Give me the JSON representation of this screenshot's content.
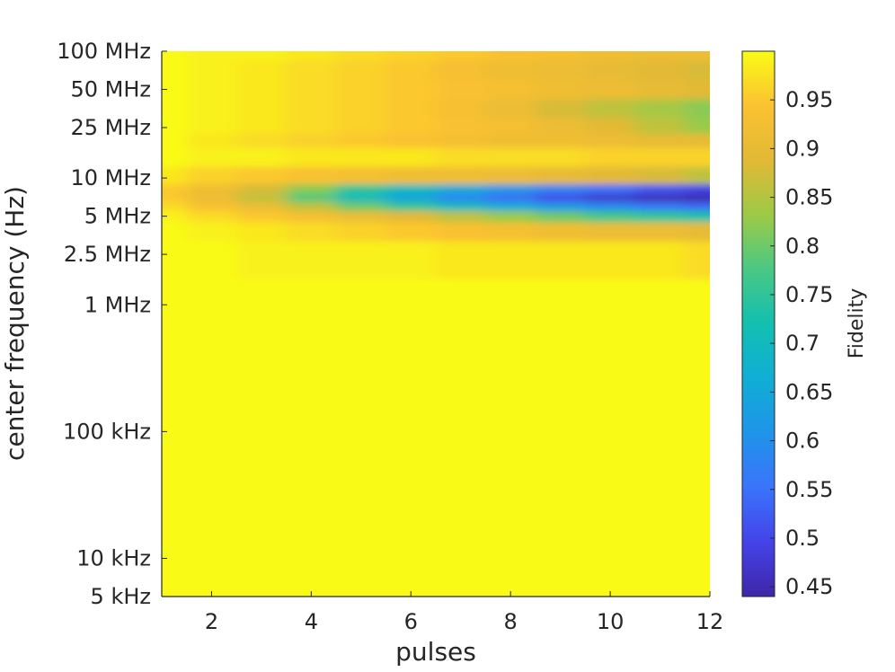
{
  "chart_data": {
    "type": "heatmap",
    "title": "",
    "xlabel": "pulses",
    "ylabel": "center frequency (Hz)",
    "colorbar_label": "Fidelity",
    "x_range": [
      1,
      12
    ],
    "x_ticks": [
      2,
      4,
      6,
      8,
      10,
      12
    ],
    "x_tick_labels": [
      "2",
      "4",
      "6",
      "8",
      "10",
      "12"
    ],
    "y_scale": "log",
    "y_range": [
      5000,
      100000000
    ],
    "y_ticks": [
      5000,
      10000,
      100000,
      1000000,
      2500000,
      5000000,
      10000000,
      25000000,
      50000000,
      100000000
    ],
    "y_tick_labels": [
      "5 kHz",
      "10 kHz",
      "100 kHz",
      "1 MHz",
      "2.5 MHz",
      "5 MHz",
      "10 MHz",
      "25 MHz",
      "50 MHz",
      "100 MHz"
    ],
    "colorbar_range": [
      0.44,
      1.0
    ],
    "colorbar_ticks": [
      0.45,
      0.5,
      0.55,
      0.6,
      0.65,
      0.7,
      0.75,
      0.8,
      0.85,
      0.9,
      0.95
    ],
    "colorbar_tick_labels": [
      "0.45",
      "0.5",
      "0.55",
      "0.6",
      "0.65",
      "0.7",
      "0.75",
      "0.8",
      "0.85",
      "0.9",
      "0.95"
    ],
    "colormap": "parula",
    "grid": false,
    "pulses": [
      1,
      2,
      3,
      4,
      5,
      6,
      7,
      8,
      9,
      10,
      11,
      12
    ],
    "frequencies_hz": [
      100000000,
      70000000,
      50000000,
      35000000,
      25000000,
      20000000,
      15000000,
      10000000,
      8000000,
      7000000,
      6000000,
      5000000,
      4000000,
      2500000,
      1000000,
      100000,
      10000,
      5000
    ],
    "fidelity": [
      [
        1.0,
        0.99,
        0.99,
        0.98,
        0.97,
        0.96,
        0.95,
        0.94,
        0.93,
        0.92,
        0.91,
        0.91
      ],
      [
        1.0,
        0.99,
        0.98,
        0.97,
        0.96,
        0.95,
        0.93,
        0.92,
        0.91,
        0.9,
        0.89,
        0.88
      ],
      [
        1.0,
        0.99,
        0.98,
        0.97,
        0.96,
        0.95,
        0.94,
        0.93,
        0.92,
        0.91,
        0.9,
        0.89
      ],
      [
        1.0,
        0.99,
        0.98,
        0.97,
        0.96,
        0.95,
        0.93,
        0.91,
        0.88,
        0.86,
        0.84,
        0.82
      ],
      [
        1.0,
        0.99,
        0.98,
        0.97,
        0.96,
        0.95,
        0.94,
        0.93,
        0.91,
        0.89,
        0.86,
        0.83
      ],
      [
        1.0,
        0.98,
        0.97,
        0.96,
        0.95,
        0.94,
        0.93,
        0.92,
        0.92,
        0.91,
        0.9,
        0.9
      ],
      [
        1.0,
        0.99,
        0.99,
        0.98,
        0.98,
        0.98,
        0.97,
        0.97,
        0.97,
        0.96,
        0.96,
        0.96
      ],
      [
        0.98,
        0.96,
        0.95,
        0.94,
        0.93,
        0.92,
        0.92,
        0.91,
        0.9,
        0.89,
        0.88,
        0.86
      ],
      [
        0.95,
        0.92,
        0.88,
        0.82,
        0.75,
        0.7,
        0.66,
        0.62,
        0.58,
        0.55,
        0.52,
        0.5
      ],
      [
        0.95,
        0.91,
        0.86,
        0.78,
        0.7,
        0.64,
        0.58,
        0.54,
        0.5,
        0.47,
        0.45,
        0.44
      ],
      [
        0.97,
        0.94,
        0.91,
        0.86,
        0.8,
        0.75,
        0.7,
        0.66,
        0.62,
        0.59,
        0.56,
        0.54
      ],
      [
        0.99,
        0.97,
        0.95,
        0.93,
        0.91,
        0.89,
        0.86,
        0.83,
        0.8,
        0.77,
        0.75,
        0.73
      ],
      [
        1.0,
        0.99,
        0.98,
        0.97,
        0.96,
        0.95,
        0.94,
        0.93,
        0.92,
        0.91,
        0.91,
        0.9
      ],
      [
        1.0,
        1.0,
        0.99,
        0.99,
        0.99,
        0.99,
        0.98,
        0.98,
        0.98,
        0.98,
        0.98,
        0.97
      ],
      [
        1.0,
        1.0,
        1.0,
        1.0,
        1.0,
        1.0,
        1.0,
        1.0,
        1.0,
        1.0,
        1.0,
        1.0
      ],
      [
        1.0,
        1.0,
        1.0,
        1.0,
        1.0,
        1.0,
        1.0,
        1.0,
        1.0,
        1.0,
        1.0,
        1.0
      ],
      [
        1.0,
        1.0,
        1.0,
        1.0,
        1.0,
        1.0,
        1.0,
        1.0,
        1.0,
        1.0,
        1.0,
        1.0
      ],
      [
        1.0,
        1.0,
        1.0,
        1.0,
        1.0,
        1.0,
        1.0,
        1.0,
        1.0,
        1.0,
        1.0,
        1.0
      ]
    ]
  }
}
